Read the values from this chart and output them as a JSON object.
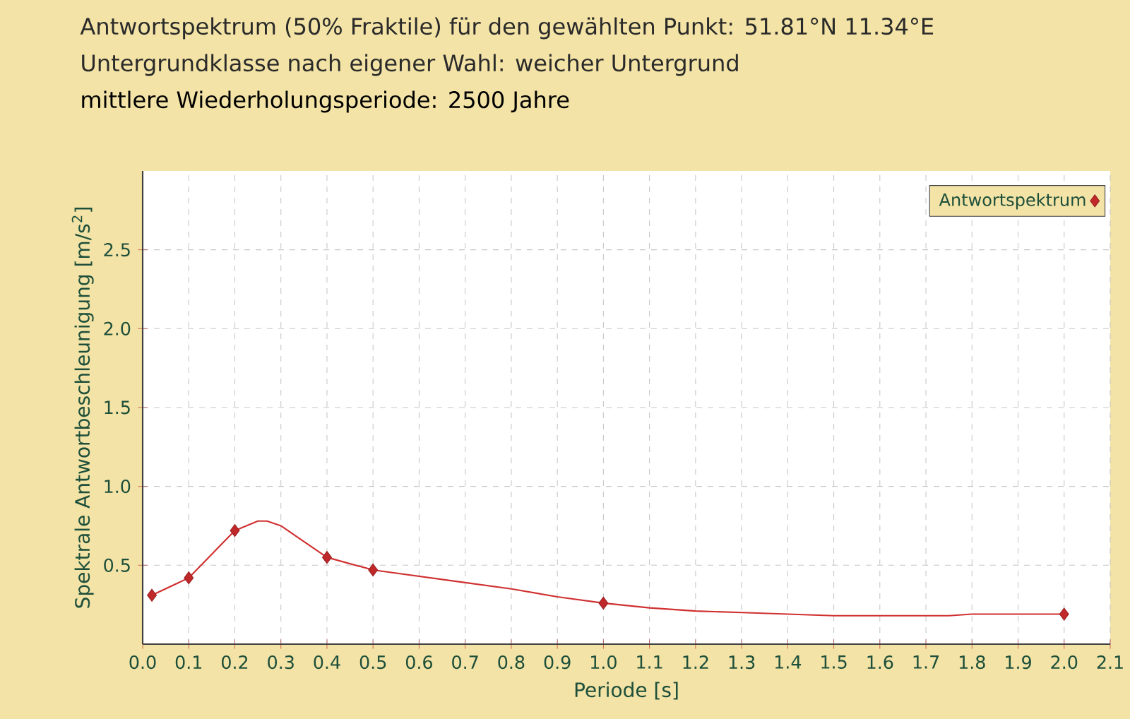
{
  "chart_data": {
    "type": "line",
    "title": "Antwortspektrum (50% Fraktile) für den gewählten Punkt: 51.81°N 11.34°E",
    "subtitle": "Untergrundklasse nach eigener Wahl: weicher Untergrund",
    "annotations": [
      "mittlere Wiederholungsperiode: 2500 Jahre"
    ],
    "xlabel": "Periode [s]",
    "ylabel": "Spektrale Antwortbeschleunigung [m/s$^{2}$]",
    "series": [
      {
        "type": "line",
        "marker": "none",
        "color": "#d03030",
        "x": [
          0.02,
          0.1,
          0.2,
          0.25,
          0.27,
          0.3,
          0.4,
          0.5,
          0.6,
          0.7,
          0.8,
          0.9,
          1.0,
          1.1,
          1.2,
          1.3,
          1.5,
          1.75,
          1.8,
          2.0
        ],
        "values": [
          0.31,
          0.42,
          0.72,
          0.78,
          0.78,
          0.75,
          0.55,
          0.47,
          0.43,
          0.39,
          0.35,
          0.3,
          0.26,
          0.23,
          0.21,
          0.2,
          0.18,
          0.18,
          0.19,
          0.19
        ]
      },
      {
        "type": "scatter",
        "name": "Antwortspektrum",
        "marker": "diamond",
        "color": "#c0282a",
        "x": [
          0.02,
          0.1,
          0.2,
          0.4,
          0.5,
          1.0,
          2.0
        ],
        "values": [
          0.31,
          0.42,
          0.72,
          0.55,
          0.47,
          0.26,
          0.19
        ]
      }
    ],
    "xlim": [
      0,
      2.1
    ],
    "ylim": [
      0,
      3
    ],
    "xticks": [
      {
        "value": 0,
        "label": "0.0"
      },
      0.1,
      0.2,
      0.3,
      0.4,
      0.5,
      0.6,
      0.7,
      0.8,
      0.9,
      {
        "value": 1,
        "label": "1.0"
      },
      1.1,
      1.2,
      1.3,
      1.4,
      1.5,
      1.6,
      1.7,
      1.8,
      1.9,
      {
        "value": 2,
        "label": "2.0"
      },
      2.1
    ],
    "yticks": [
      0.5,
      {
        "value": 1,
        "label": "1.0"
      },
      1.5,
      {
        "value": 2,
        "label": "2.0"
      },
      2.5
    ],
    "grid": true,
    "legend": "top right",
    "line_style": "solid"
  }
}
